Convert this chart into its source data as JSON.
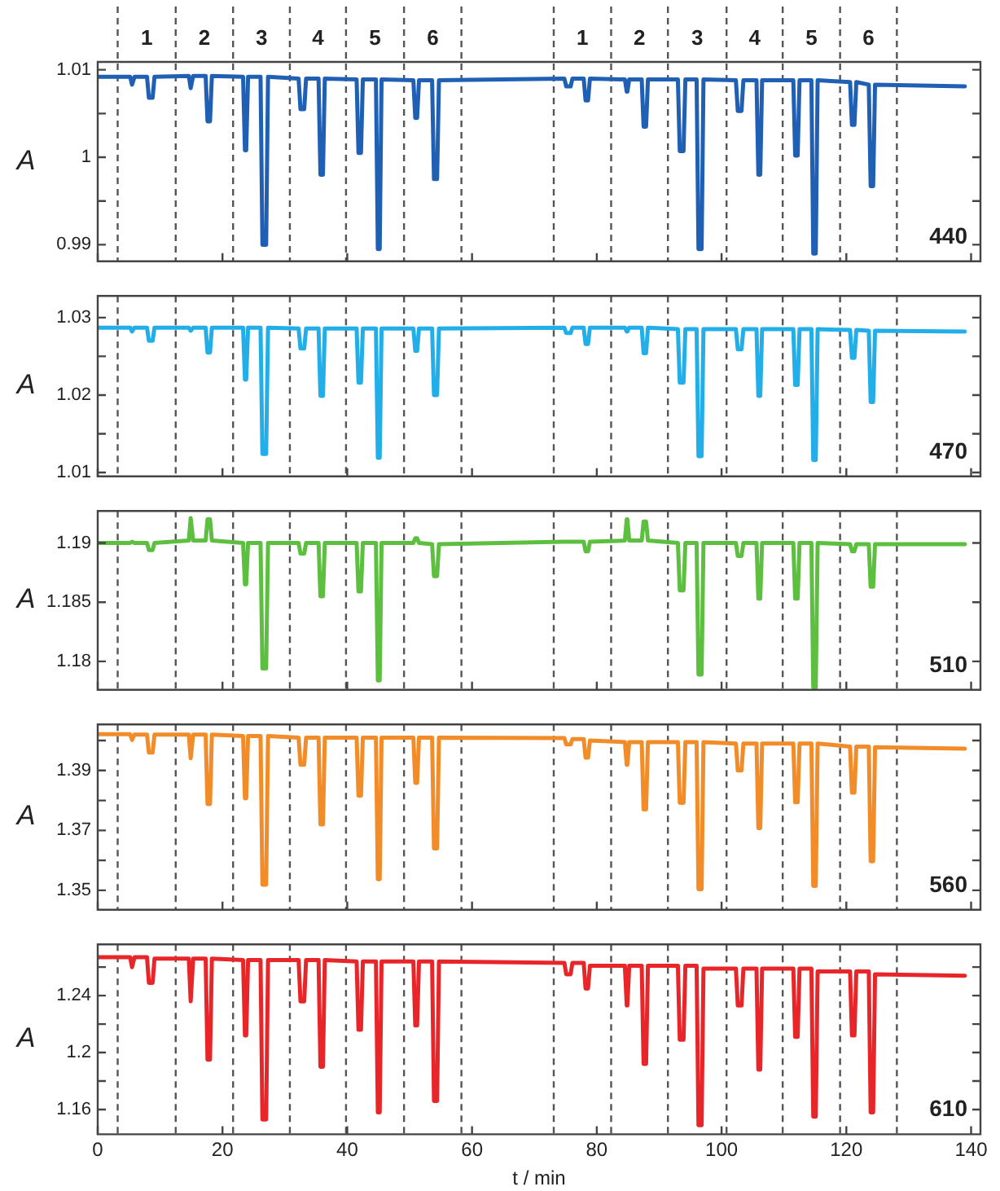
{
  "chart_data": [
    {
      "type": "line",
      "ylabel": "A",
      "xlim": [
        0,
        141.5
      ],
      "xticks": [
        0,
        20,
        40,
        60,
        80,
        100,
        120,
        140
      ],
      "ylim": [
        0.9881,
        1.0109
      ],
      "yticks": [
        0.99,
        {
          "value": 0.995,
          "label": null
        },
        1,
        {
          "value": 1.005,
          "label": null
        },
        1.01
      ],
      "tick_labels": "y",
      "annotations": [
        "1",
        "2",
        "3",
        "4",
        "5",
        "6",
        "1",
        "2",
        "3",
        "4",
        "5",
        "6"
      ],
      "ref_lines": [
        {
          "axis": "x",
          "value": 3.2,
          "color": "#555555",
          "line_style": "dashed"
        },
        {
          "axis": "x",
          "value": 12.5,
          "color": "#555555",
          "line_style": "dashed"
        },
        {
          "axis": "x",
          "value": 21.7,
          "color": "#555555",
          "line_style": "dashed"
        },
        {
          "axis": "x",
          "value": 30.8,
          "color": "#555555",
          "line_style": "dashed"
        },
        {
          "axis": "x",
          "value": 39.8,
          "color": "#555555",
          "line_style": "dashed"
        },
        {
          "axis": "x",
          "value": 49.1,
          "color": "#555555",
          "line_style": "dashed"
        },
        {
          "axis": "x",
          "value": 58.3,
          "color": "#555555",
          "line_style": "dashed"
        },
        {
          "axis": "x",
          "value": 73.1,
          "color": "#555555",
          "line_style": "dashed"
        },
        {
          "axis": "x",
          "value": 82.3,
          "color": "#555555",
          "line_style": "dashed"
        },
        {
          "axis": "x",
          "value": 91.4,
          "color": "#555555",
          "line_style": "dashed"
        },
        {
          "axis": "x",
          "value": 100.8,
          "color": "#555555",
          "line_style": "dashed"
        },
        {
          "axis": "x",
          "value": 109.8,
          "color": "#555555",
          "line_style": "dashed"
        },
        {
          "axis": "x",
          "value": 119,
          "color": "#555555",
          "line_style": "dashed"
        },
        {
          "axis": "x",
          "value": 128.1,
          "color": "#555555",
          "line_style": "dashed"
        }
      ],
      "x": [
        0,
        5.2,
        5.5,
        5.6,
        5.9,
        7.9,
        8.2,
        8.8,
        9.1,
        14.6,
        14.9,
        15.0,
        15.3,
        17.3,
        17.6,
        18.0,
        18.3,
        23.3,
        23.6,
        23.8,
        24.1,
        26.1,
        26.4,
        27.0,
        27.3,
        32.2,
        32.5,
        33.1,
        33.4,
        35.4,
        35.7,
        36.1,
        36.4,
        41.5,
        41.8,
        42.2,
        42.5,
        44.6,
        44.9,
        45.2,
        45.5,
        50.6,
        50.9,
        51.2,
        51.5,
        53.6,
        53.9,
        54.4,
        54.7,
        74.8,
        75.1,
        75.8,
        76.1,
        77.9,
        78.2,
        78.6,
        78.9,
        84.5,
        84.8,
        84.9,
        85.2,
        87.2,
        87.5,
        87.9,
        88.2,
        93.0,
        93.3,
        93.9,
        94.2,
        96.0,
        96.3,
        96.8,
        97.1,
        102.3,
        102.6,
        103.2,
        103.5,
        105.6,
        105.9,
        106.2,
        106.5,
        111.5,
        111.8,
        112.2,
        112.5,
        114.4,
        114.7,
        115.1,
        115.4,
        120.6,
        120.9,
        121.3,
        121.6,
        123.6,
        123.9,
        124.3,
        124.6,
        139
      ],
      "series": [
        {
          "name": "440",
          "color": "#1f5fb4",
          "values": [
            1.0092,
            1.0092,
            1.0083,
            1.0083,
            1.0092,
            1.0092,
            1.0068,
            1.0068,
            1.0092,
            1.0093,
            1.0079,
            1.0079,
            1.0093,
            1.0093,
            1.0041,
            1.0041,
            1.0093,
            1.0092,
            1.0008,
            1.0008,
            1.0092,
            1.0092,
            0.99,
            0.99,
            1.0092,
            1.009,
            1.0055,
            1.0055,
            1.009,
            1.009,
            0.998,
            0.998,
            1.009,
            1.0089,
            1.0005,
            1.0005,
            1.0089,
            1.0089,
            0.9895,
            0.9895,
            1.0089,
            1.0088,
            1.0045,
            1.0045,
            1.0088,
            1.0088,
            0.9975,
            0.9975,
            1.0088,
            1.009,
            1.0081,
            1.0081,
            1.009,
            1.009,
            1.0065,
            1.0065,
            1.009,
            1.0089,
            1.0075,
            1.0075,
            1.0089,
            1.0089,
            1.0035,
            1.0035,
            1.0089,
            1.0089,
            1.0007,
            1.0007,
            1.0089,
            1.0089,
            0.9895,
            0.9895,
            1.0089,
            1.0088,
            1.0053,
            1.0053,
            1.0088,
            1.0088,
            0.998,
            0.998,
            1.0088,
            1.0088,
            1.0002,
            1.0002,
            1.0088,
            1.0088,
            0.989,
            0.989,
            1.0088,
            1.0086,
            1.0037,
            1.0037,
            1.0086,
            1.0083,
            0.9967,
            0.9967,
            1.0083,
            1.0081
          ]
        }
      ]
    },
    {
      "type": "line",
      "ylabel": "A",
      "xlim": [
        0,
        141.5
      ],
      "xticks": [
        0,
        20,
        40,
        60,
        80,
        100,
        120,
        140
      ],
      "ylim": [
        1.0095,
        1.0328
      ],
      "yticks": [
        1.01,
        {
          "value": 1.015,
          "label": null
        },
        1.02,
        {
          "value": 1.025,
          "label": null
        },
        1.03
      ],
      "tick_labels": "y",
      "ref_lines": [
        {
          "axis": "x",
          "value": 3.2,
          "color": "#555555",
          "line_style": "dashed"
        },
        {
          "axis": "x",
          "value": 12.5,
          "color": "#555555",
          "line_style": "dashed"
        },
        {
          "axis": "x",
          "value": 21.7,
          "color": "#555555",
          "line_style": "dashed"
        },
        {
          "axis": "x",
          "value": 30.8,
          "color": "#555555",
          "line_style": "dashed"
        },
        {
          "axis": "x",
          "value": 39.8,
          "color": "#555555",
          "line_style": "dashed"
        },
        {
          "axis": "x",
          "value": 49.1,
          "color": "#555555",
          "line_style": "dashed"
        },
        {
          "axis": "x",
          "value": 58.3,
          "color": "#555555",
          "line_style": "dashed"
        },
        {
          "axis": "x",
          "value": 73.1,
          "color": "#555555",
          "line_style": "dashed"
        },
        {
          "axis": "x",
          "value": 82.3,
          "color": "#555555",
          "line_style": "dashed"
        },
        {
          "axis": "x",
          "value": 91.4,
          "color": "#555555",
          "line_style": "dashed"
        },
        {
          "axis": "x",
          "value": 100.8,
          "color": "#555555",
          "line_style": "dashed"
        },
        {
          "axis": "x",
          "value": 109.8,
          "color": "#555555",
          "line_style": "dashed"
        },
        {
          "axis": "x",
          "value": 119,
          "color": "#555555",
          "line_style": "dashed"
        },
        {
          "axis": "x",
          "value": 128.1,
          "color": "#555555",
          "line_style": "dashed"
        }
      ],
      "x": [
        0,
        5.2,
        5.5,
        5.6,
        5.9,
        7.9,
        8.2,
        8.8,
        9.1,
        14.6,
        14.9,
        15.0,
        15.3,
        17.3,
        17.6,
        18.0,
        18.3,
        23.3,
        23.6,
        23.8,
        24.1,
        26.1,
        26.4,
        27.0,
        27.3,
        32.2,
        32.5,
        33.1,
        33.4,
        35.4,
        35.7,
        36.1,
        36.4,
        41.5,
        41.8,
        42.2,
        42.5,
        44.6,
        44.9,
        45.2,
        45.5,
        50.6,
        50.9,
        51.2,
        51.5,
        53.6,
        53.9,
        54.4,
        54.7,
        74.8,
        75.1,
        75.8,
        76.1,
        77.9,
        78.2,
        78.6,
        78.9,
        84.5,
        84.8,
        84.9,
        85.2,
        87.2,
        87.5,
        87.9,
        88.2,
        93.0,
        93.3,
        93.9,
        94.2,
        96.0,
        96.3,
        96.8,
        97.1,
        102.3,
        102.6,
        103.2,
        103.5,
        105.6,
        105.9,
        106.2,
        106.5,
        111.5,
        111.8,
        112.2,
        112.5,
        114.4,
        114.7,
        115.1,
        115.4,
        120.6,
        120.9,
        121.3,
        121.6,
        123.6,
        123.9,
        124.3,
        124.6,
        139
      ],
      "series": [
        {
          "name": "470",
          "color": "#22aee8",
          "values": [
            1.0287,
            1.0287,
            1.0282,
            1.0282,
            1.0287,
            1.0287,
            1.027,
            1.027,
            1.0287,
            1.0287,
            1.0283,
            1.0283,
            1.0287,
            1.0287,
            1.0255,
            1.0255,
            1.0287,
            1.0287,
            1.022,
            1.022,
            1.0287,
            1.0287,
            1.0124,
            1.0124,
            1.0287,
            1.0286,
            1.026,
            1.026,
            1.0286,
            1.0286,
            1.0199,
            1.0199,
            1.0286,
            1.0286,
            1.0216,
            1.0216,
            1.0286,
            1.0286,
            1.0119,
            1.0119,
            1.0286,
            1.0286,
            1.0257,
            1.0257,
            1.0286,
            1.0286,
            1.02,
            1.02,
            1.0286,
            1.0287,
            1.028,
            1.028,
            1.0287,
            1.0287,
            1.0266,
            1.0266,
            1.0287,
            1.0287,
            1.0282,
            1.0282,
            1.0287,
            1.0287,
            1.0254,
            1.0254,
            1.0287,
            1.0285,
            1.0216,
            1.0216,
            1.0285,
            1.0285,
            1.0121,
            1.0121,
            1.0285,
            1.0285,
            1.0259,
            1.0259,
            1.0285,
            1.0285,
            1.0199,
            1.0199,
            1.0285,
            1.0285,
            1.0213,
            1.0213,
            1.0285,
            1.0285,
            1.0116,
            1.0116,
            1.0285,
            1.0284,
            1.0248,
            1.0248,
            1.0284,
            1.0283,
            1.0191,
            1.0191,
            1.0283,
            1.0282
          ]
        }
      ]
    },
    {
      "type": "line",
      "ylabel": "A",
      "xlim": [
        0,
        141.5
      ],
      "xticks": [
        0,
        20,
        40,
        60,
        80,
        100,
        120,
        140
      ],
      "ylim": [
        1.1776,
        1.1927
      ],
      "yticks": [
        1.18,
        1.185,
        1.19
      ],
      "tick_labels": "y",
      "ref_lines": [
        {
          "axis": "x",
          "value": 3.2,
          "color": "#555555",
          "line_style": "dashed"
        },
        {
          "axis": "x",
          "value": 12.5,
          "color": "#555555",
          "line_style": "dashed"
        },
        {
          "axis": "x",
          "value": 21.7,
          "color": "#555555",
          "line_style": "dashed"
        },
        {
          "axis": "x",
          "value": 30.8,
          "color": "#555555",
          "line_style": "dashed"
        },
        {
          "axis": "x",
          "value": 39.8,
          "color": "#555555",
          "line_style": "dashed"
        },
        {
          "axis": "x",
          "value": 49.1,
          "color": "#555555",
          "line_style": "dashed"
        },
        {
          "axis": "x",
          "value": 58.3,
          "color": "#555555",
          "line_style": "dashed"
        },
        {
          "axis": "x",
          "value": 73.1,
          "color": "#555555",
          "line_style": "dashed"
        },
        {
          "axis": "x",
          "value": 82.3,
          "color": "#555555",
          "line_style": "dashed"
        },
        {
          "axis": "x",
          "value": 91.4,
          "color": "#555555",
          "line_style": "dashed"
        },
        {
          "axis": "x",
          "value": 100.8,
          "color": "#555555",
          "line_style": "dashed"
        },
        {
          "axis": "x",
          "value": 109.8,
          "color": "#555555",
          "line_style": "dashed"
        },
        {
          "axis": "x",
          "value": 119,
          "color": "#555555",
          "line_style": "dashed"
        },
        {
          "axis": "x",
          "value": 128.1,
          "color": "#555555",
          "line_style": "dashed"
        }
      ],
      "x": [
        0,
        5.2,
        5.5,
        5.6,
        5.9,
        7.9,
        8.2,
        8.8,
        9.1,
        14.6,
        14.9,
        15.0,
        15.3,
        17.3,
        17.6,
        18.0,
        18.3,
        23.3,
        23.6,
        23.8,
        24.1,
        26.1,
        26.4,
        27.0,
        27.3,
        32.2,
        32.5,
        33.1,
        33.4,
        35.4,
        35.7,
        36.1,
        36.4,
        41.5,
        41.8,
        42.2,
        42.5,
        44.6,
        44.9,
        45.2,
        45.5,
        50.6,
        50.9,
        51.2,
        51.5,
        53.6,
        53.9,
        54.4,
        54.7,
        74.8,
        75.1,
        75.8,
        76.1,
        77.9,
        78.2,
        78.6,
        78.9,
        84.5,
        84.8,
        84.9,
        85.2,
        87.2,
        87.5,
        87.9,
        88.2,
        93.0,
        93.3,
        93.9,
        94.2,
        96.0,
        96.3,
        96.8,
        97.1,
        102.3,
        102.6,
        103.2,
        103.5,
        105.6,
        105.9,
        106.2,
        106.5,
        111.5,
        111.8,
        112.2,
        112.5,
        114.4,
        114.7,
        115.1,
        115.4,
        120.6,
        120.9,
        121.3,
        121.6,
        123.6,
        123.9,
        124.3,
        124.6,
        139
      ],
      "series": [
        {
          "name": "510",
          "color": "#5cbf3f",
          "values": [
            1.19,
            1.19,
            1.1901,
            1.1901,
            1.19,
            1.19,
            1.1894,
            1.1894,
            1.19,
            1.1902,
            1.1921,
            1.1921,
            1.1902,
            1.1902,
            1.192,
            1.192,
            1.1902,
            1.19,
            1.1865,
            1.1865,
            1.19,
            1.19,
            1.1794,
            1.1794,
            1.19,
            1.19,
            1.1891,
            1.1891,
            1.19,
            1.19,
            1.1855,
            1.1855,
            1.19,
            1.19,
            1.1859,
            1.1859,
            1.19,
            1.19,
            1.1784,
            1.1784,
            1.19,
            1.19,
            1.1904,
            1.1904,
            1.19,
            1.1899,
            1.1872,
            1.1872,
            1.1899,
            1.1901,
            1.1901,
            1.1901,
            1.1901,
            1.1901,
            1.1893,
            1.1893,
            1.1901,
            1.1902,
            1.192,
            1.192,
            1.1902,
            1.1902,
            1.1918,
            1.1918,
            1.1902,
            1.19,
            1.186,
            1.186,
            1.19,
            1.19,
            1.1789,
            1.1789,
            1.19,
            1.19,
            1.1889,
            1.1889,
            1.19,
            1.19,
            1.1853,
            1.1853,
            1.19,
            1.19,
            1.1853,
            1.1853,
            1.19,
            1.19,
            1.1778,
            1.1778,
            1.19,
            1.1899,
            1.1893,
            1.1893,
            1.1899,
            1.1899,
            1.1863,
            1.1863,
            1.1899,
            1.1899
          ]
        }
      ]
    },
    {
      "type": "line",
      "ylabel": "A",
      "xlim": [
        0,
        141.5
      ],
      "xticks": [
        0,
        20,
        40,
        60,
        80,
        100,
        120,
        140
      ],
      "ylim": [
        1.3435,
        1.4054
      ],
      "yticks": [
        1.35,
        {
          "value": 1.36,
          "label": null
        },
        1.37,
        {
          "value": 1.38,
          "label": null
        },
        1.39,
        {
          "value": 1.4,
          "label": null
        }
      ],
      "tick_labels": "y",
      "ref_lines": [
        {
          "axis": "x",
          "value": 3.2,
          "color": "#555555",
          "line_style": "dashed"
        },
        {
          "axis": "x",
          "value": 12.5,
          "color": "#555555",
          "line_style": "dashed"
        },
        {
          "axis": "x",
          "value": 21.7,
          "color": "#555555",
          "line_style": "dashed"
        },
        {
          "axis": "x",
          "value": 30.8,
          "color": "#555555",
          "line_style": "dashed"
        },
        {
          "axis": "x",
          "value": 39.8,
          "color": "#555555",
          "line_style": "dashed"
        },
        {
          "axis": "x",
          "value": 49.1,
          "color": "#555555",
          "line_style": "dashed"
        },
        {
          "axis": "x",
          "value": 58.3,
          "color": "#555555",
          "line_style": "dashed"
        },
        {
          "axis": "x",
          "value": 73.1,
          "color": "#555555",
          "line_style": "dashed"
        },
        {
          "axis": "x",
          "value": 82.3,
          "color": "#555555",
          "line_style": "dashed"
        },
        {
          "axis": "x",
          "value": 91.4,
          "color": "#555555",
          "line_style": "dashed"
        },
        {
          "axis": "x",
          "value": 100.8,
          "color": "#555555",
          "line_style": "dashed"
        },
        {
          "axis": "x",
          "value": 109.8,
          "color": "#555555",
          "line_style": "dashed"
        },
        {
          "axis": "x",
          "value": 119,
          "color": "#555555",
          "line_style": "dashed"
        },
        {
          "axis": "x",
          "value": 128.1,
          "color": "#555555",
          "line_style": "dashed"
        }
      ],
      "x": [
        0,
        5.2,
        5.5,
        5.6,
        5.9,
        7.9,
        8.2,
        8.8,
        9.1,
        14.6,
        14.9,
        15.0,
        15.3,
        17.3,
        17.6,
        18.0,
        18.3,
        23.3,
        23.6,
        23.8,
        24.1,
        26.1,
        26.4,
        27.0,
        27.3,
        32.2,
        32.5,
        33.1,
        33.4,
        35.4,
        35.7,
        36.1,
        36.4,
        41.5,
        41.8,
        42.2,
        42.5,
        44.6,
        44.9,
        45.2,
        45.5,
        50.6,
        50.9,
        51.2,
        51.5,
        53.6,
        53.9,
        54.4,
        54.7,
        74.8,
        75.1,
        75.8,
        76.1,
        77.9,
        78.2,
        78.6,
        78.9,
        84.5,
        84.8,
        84.9,
        85.2,
        87.2,
        87.5,
        87.9,
        88.2,
        93.0,
        93.3,
        93.9,
        94.2,
        96.0,
        96.3,
        96.8,
        97.1,
        102.3,
        102.6,
        103.2,
        103.5,
        105.6,
        105.9,
        106.2,
        106.5,
        111.5,
        111.8,
        112.2,
        112.5,
        114.4,
        114.7,
        115.1,
        115.4,
        120.6,
        120.9,
        121.3,
        121.6,
        123.6,
        123.9,
        124.3,
        124.6,
        139
      ],
      "series": [
        {
          "name": "560",
          "color": "#f28c28",
          "values": [
            1.4021,
            1.4021,
            1.4002,
            1.4002,
            1.402,
            1.402,
            1.396,
            1.396,
            1.402,
            1.402,
            1.3941,
            1.3941,
            1.402,
            1.402,
            1.3788,
            1.3788,
            1.402,
            1.4015,
            1.3807,
            1.3807,
            1.4015,
            1.4015,
            1.3519,
            1.3519,
            1.4015,
            1.401,
            1.3919,
            1.3919,
            1.401,
            1.401,
            1.372,
            1.372,
            1.401,
            1.401,
            1.3816,
            1.3816,
            1.401,
            1.401,
            1.3537,
            1.3537,
            1.401,
            1.401,
            1.3859,
            1.3859,
            1.401,
            1.401,
            1.364,
            1.364,
            1.401,
            1.4008,
            1.3987,
            1.3987,
            1.4005,
            1.4005,
            1.3943,
            1.3943,
            1.4,
            1.3995,
            1.3919,
            1.3919,
            1.3995,
            1.3995,
            1.377,
            1.377,
            1.3995,
            1.3995,
            1.3792,
            1.3792,
            1.3995,
            1.3995,
            1.3504,
            1.3504,
            1.3995,
            1.399,
            1.39,
            1.39,
            1.399,
            1.399,
            1.3708,
            1.3708,
            1.399,
            1.399,
            1.3794,
            1.3794,
            1.399,
            1.399,
            1.3515,
            1.3515,
            1.399,
            1.398,
            1.3826,
            1.3826,
            1.398,
            1.398,
            1.3597,
            1.3597,
            1.3978,
            1.3973
          ]
        }
      ]
    },
    {
      "type": "line",
      "ylabel": "A",
      "xlabel": "t / min",
      "xlim": [
        0,
        141.5
      ],
      "xticks": [
        0,
        20,
        40,
        60,
        80,
        100,
        120,
        140
      ],
      "ylim": [
        1.1426,
        1.276
      ],
      "yticks": [
        1.16,
        {
          "value": 1.18,
          "label": null
        },
        1.2,
        {
          "value": 1.22,
          "label": null
        },
        1.24,
        {
          "value": 1.26,
          "label": null
        }
      ],
      "ref_lines": [
        {
          "axis": "x",
          "value": 3.2,
          "color": "#555555",
          "line_style": "dashed"
        },
        {
          "axis": "x",
          "value": 12.5,
          "color": "#555555",
          "line_style": "dashed"
        },
        {
          "axis": "x",
          "value": 21.7,
          "color": "#555555",
          "line_style": "dashed"
        },
        {
          "axis": "x",
          "value": 30.8,
          "color": "#555555",
          "line_style": "dashed"
        },
        {
          "axis": "x",
          "value": 39.8,
          "color": "#555555",
          "line_style": "dashed"
        },
        {
          "axis": "x",
          "value": 49.1,
          "color": "#555555",
          "line_style": "dashed"
        },
        {
          "axis": "x",
          "value": 58.3,
          "color": "#555555",
          "line_style": "dashed"
        },
        {
          "axis": "x",
          "value": 73.1,
          "color": "#555555",
          "line_style": "dashed"
        },
        {
          "axis": "x",
          "value": 82.3,
          "color": "#555555",
          "line_style": "dashed"
        },
        {
          "axis": "x",
          "value": 91.4,
          "color": "#555555",
          "line_style": "dashed"
        },
        {
          "axis": "x",
          "value": 100.8,
          "color": "#555555",
          "line_style": "dashed"
        },
        {
          "axis": "x",
          "value": 109.8,
          "color": "#555555",
          "line_style": "dashed"
        },
        {
          "axis": "x",
          "value": 119,
          "color": "#555555",
          "line_style": "dashed"
        },
        {
          "axis": "x",
          "value": 128.1,
          "color": "#555555",
          "line_style": "dashed"
        }
      ],
      "x": [
        0,
        5.2,
        5.5,
        5.6,
        5.9,
        7.9,
        8.2,
        8.8,
        9.1,
        14.6,
        14.9,
        15.0,
        15.3,
        17.3,
        17.6,
        18.0,
        18.3,
        23.3,
        23.6,
        23.8,
        24.1,
        26.1,
        26.4,
        27.0,
        27.3,
        32.2,
        32.5,
        33.1,
        33.4,
        35.4,
        35.7,
        36.1,
        36.4,
        41.5,
        41.8,
        42.2,
        42.5,
        44.6,
        44.9,
        45.2,
        45.5,
        50.6,
        50.9,
        51.2,
        51.5,
        53.6,
        53.9,
        54.4,
        54.7,
        74.8,
        75.1,
        75.8,
        76.1,
        77.9,
        78.2,
        78.6,
        78.9,
        84.5,
        84.8,
        84.9,
        85.2,
        87.2,
        87.5,
        87.9,
        88.2,
        93.0,
        93.3,
        93.9,
        94.2,
        96.0,
        96.3,
        96.8,
        97.1,
        102.3,
        102.6,
        103.2,
        103.5,
        105.6,
        105.9,
        106.2,
        106.5,
        111.5,
        111.8,
        112.2,
        112.5,
        114.4,
        114.7,
        115.1,
        115.4,
        120.6,
        120.9,
        121.3,
        121.6,
        123.6,
        123.9,
        124.3,
        124.6,
        139
      ],
      "series": [
        {
          "name": "610",
          "color": "#e8262a",
          "values": [
            1.267,
            1.267,
            1.26,
            1.26,
            1.267,
            1.267,
            1.249,
            1.249,
            1.266,
            1.266,
            1.236,
            1.236,
            1.266,
            1.266,
            1.195,
            1.195,
            1.266,
            1.265,
            1.212,
            1.212,
            1.265,
            1.265,
            1.153,
            1.153,
            1.265,
            1.265,
            1.236,
            1.236,
            1.265,
            1.265,
            1.19,
            1.19,
            1.265,
            1.264,
            1.216,
            1.216,
            1.264,
            1.264,
            1.158,
            1.158,
            1.264,
            1.264,
            1.219,
            1.219,
            1.264,
            1.264,
            1.166,
            1.166,
            1.264,
            1.263,
            1.255,
            1.255,
            1.263,
            1.263,
            1.245,
            1.245,
            1.261,
            1.261,
            1.233,
            1.233,
            1.261,
            1.261,
            1.192,
            1.192,
            1.261,
            1.261,
            1.209,
            1.209,
            1.261,
            1.261,
            1.149,
            1.149,
            1.259,
            1.259,
            1.233,
            1.233,
            1.259,
            1.259,
            1.188,
            1.188,
            1.259,
            1.259,
            1.211,
            1.211,
            1.259,
            1.259,
            1.155,
            1.155,
            1.257,
            1.257,
            1.212,
            1.212,
            1.257,
            1.257,
            1.158,
            1.158,
            1.255,
            1.254
          ]
        }
      ]
    }
  ]
}
